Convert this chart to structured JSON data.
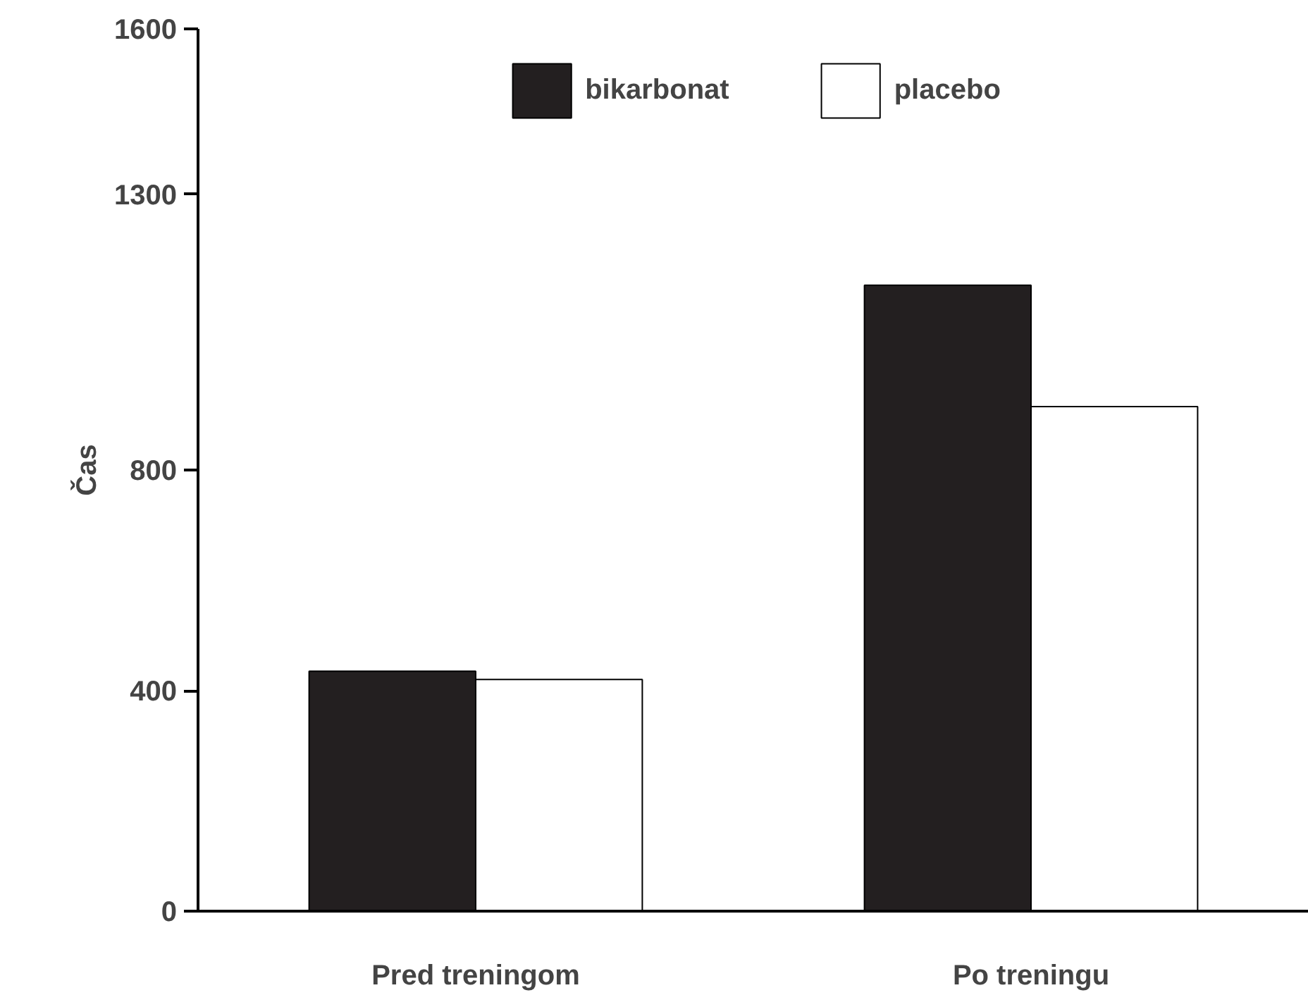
{
  "chart_data": {
    "type": "bar",
    "ylabel": "Čas",
    "categories": [
      "Pred treningom",
      "Po treningu"
    ],
    "series": [
      {
        "name": "bikarbonat",
        "color": "#231f20",
        "values": [
          435,
          1135
        ]
      },
      {
        "name": "placebo",
        "color": "#ffffff",
        "values": [
          420,
          915
        ]
      }
    ],
    "ylim": [
      0,
      1600
    ],
    "yticks": [
      0,
      400,
      800,
      1300,
      1600
    ],
    "grid": false,
    "legend": "top"
  }
}
